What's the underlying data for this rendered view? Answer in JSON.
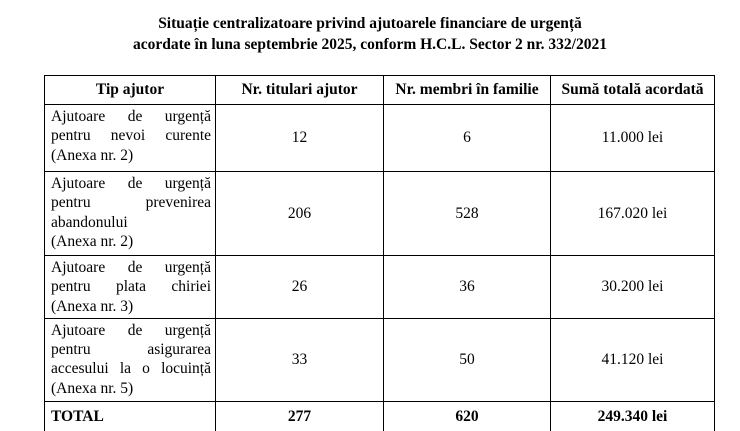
{
  "title": {
    "line1": "Situație centralizatoare privind ajutoarele financiare de urgență",
    "line2": "acordate în luna septembrie 2025, conform H.C.L. Sector 2 nr. 332/2021"
  },
  "table": {
    "headers": [
      "Tip ajutor",
      "Nr. titulari ajutor",
      "Nr. membri în familie",
      "Sumă totală acordată"
    ],
    "rows": [
      {
        "type_lines": [
          "Ajutoare de urgență",
          "pentru nevoi curente",
          "(Anexa nr. 2)"
        ],
        "titulari": "12",
        "membri": "6",
        "suma": "11.000 lei"
      },
      {
        "type_lines": [
          "Ajutoare de urgență",
          "pentru prevenirea",
          "abandonului",
          "(Anexa nr. 2)"
        ],
        "titulari": "206",
        "membri": "528",
        "suma": "167.020 lei"
      },
      {
        "type_lines": [
          "Ajutoare de urgență",
          "pentru plata chiriei",
          "(Anexa nr. 3)"
        ],
        "titulari": "26",
        "membri": "36",
        "suma": "30.200 lei"
      },
      {
        "type_lines": [
          "Ajutoare de urgență",
          "pentru asigurarea",
          "accesului la o locuință",
          "(Anexa nr. 5)"
        ],
        "titulari": "33",
        "membri": "50",
        "suma": "41.120 lei"
      }
    ],
    "total": {
      "label": "TOTAL",
      "titulari": "277",
      "membri": "620",
      "suma": "249.340 lei"
    }
  },
  "colors": {
    "text": "#000000",
    "background": "#ffffff",
    "border": "#000000"
  }
}
